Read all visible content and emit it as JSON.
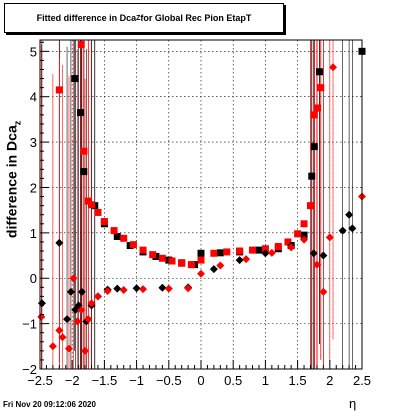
{
  "title": {
    "text": "Fitted difference in Dca",
    "sub": "Z",
    "rest": " for Global Rec Pion EtapT"
  },
  "ylabel": {
    "text": "difference in Dca",
    "sub": "z"
  },
  "xlabel": "η",
  "date": "Fri Nov 20 09:12:06 2020",
  "chart_data": {
    "type": "scatter",
    "xlim": [
      -2.5,
      2.5
    ],
    "ylim": [
      -2,
      5.25
    ],
    "xticks": [
      -2.5,
      -2,
      -1.5,
      -1,
      -0.5,
      0,
      0.5,
      1,
      1.5,
      2,
      2.5
    ],
    "xtick_labels": [
      "−2.5",
      "−2",
      "−1.5",
      "−1",
      "−0.5",
      "0",
      "0.5",
      "1",
      "1.5",
      "2",
      "2.5"
    ],
    "yticks": [
      -2,
      -1,
      0,
      1,
      2,
      3,
      4,
      5
    ],
    "ytick_labels": [
      "−2",
      "−1",
      "0",
      "1",
      "2",
      "3",
      "4",
      "5"
    ],
    "grid": true,
    "series": [
      {
        "marker": "square",
        "color": "#000000",
        "points": [
          [
            -1.96,
            4.4
          ],
          [
            -1.87,
            3.65
          ],
          [
            -1.82,
            2.35
          ],
          [
            -1.65,
            1.6
          ],
          [
            -1.5,
            1.2
          ],
          [
            -1.3,
            0.92
          ],
          [
            -1.1,
            0.72
          ],
          [
            -0.9,
            0.58
          ],
          [
            -0.7,
            0.48
          ],
          [
            -0.5,
            0.4
          ],
          [
            -0.3,
            0.34
          ],
          [
            -0.1,
            0.3
          ],
          [
            0,
            0.55
          ],
          [
            0.3,
            0.56
          ],
          [
            0.6,
            0.58
          ],
          [
            0.9,
            0.62
          ],
          [
            1.2,
            0.65
          ],
          [
            1.4,
            0.72
          ],
          [
            1.6,
            0.95
          ],
          [
            1.72,
            2.25
          ],
          [
            1.76,
            2.9
          ],
          [
            1.8,
            3.75
          ],
          [
            1.84,
            4.55
          ],
          [
            2.5,
            5.0
          ]
        ]
      },
      {
        "marker": "square",
        "color": "#ff0000",
        "points": [
          [
            -2.2,
            4.15
          ],
          [
            -1.86,
            5.15
          ],
          [
            -1.82,
            2.8
          ],
          [
            -1.75,
            1.7
          ],
          [
            -1.7,
            1.62
          ],
          [
            -1.6,
            1.45
          ],
          [
            -1.5,
            1.25
          ],
          [
            -1.35,
            1.05
          ],
          [
            -1.2,
            0.88
          ],
          [
            -1.05,
            0.74
          ],
          [
            -0.9,
            0.62
          ],
          [
            -0.75,
            0.52
          ],
          [
            -0.6,
            0.44
          ],
          [
            -0.45,
            0.38
          ],
          [
            -0.3,
            0.33
          ],
          [
            -0.15,
            0.3
          ],
          [
            0,
            0.4
          ],
          [
            0.2,
            0.55
          ],
          [
            0.4,
            0.58
          ],
          [
            0.6,
            0.6
          ],
          [
            0.8,
            0.62
          ],
          [
            1.0,
            0.65
          ],
          [
            1.2,
            0.7
          ],
          [
            1.35,
            0.8
          ],
          [
            1.5,
            0.98
          ],
          [
            1.6,
            1.2
          ],
          [
            1.7,
            1.6
          ],
          [
            1.76,
            3.6
          ],
          [
            1.8,
            3.75
          ],
          [
            1.86,
            4.2
          ]
        ]
      },
      {
        "marker": "diamond",
        "color": "#000000",
        "points": [
          [
            -2.47,
            -0.55
          ],
          [
            -2.2,
            0.78
          ],
          [
            -2.08,
            -0.9
          ],
          [
            -2.02,
            -0.3
          ],
          [
            -1.95,
            -0.7
          ],
          [
            -1.9,
            -0.6
          ],
          [
            -1.85,
            -0.3
          ],
          [
            -1.78,
            -0.95
          ],
          [
            -1.7,
            -0.6
          ],
          [
            -1.6,
            -0.4
          ],
          [
            -1.45,
            -0.25
          ],
          [
            -1.3,
            -0.23
          ],
          [
            -1.0,
            -0.22
          ],
          [
            -0.6,
            -0.21
          ],
          [
            -0.2,
            -0.2
          ],
          [
            0.2,
            0.2
          ],
          [
            0.6,
            0.4
          ],
          [
            1.0,
            0.55
          ],
          [
            1.4,
            0.72
          ],
          [
            1.75,
            0.55
          ],
          [
            1.9,
            0.5
          ],
          [
            2.2,
            1.05
          ],
          [
            2.3,
            1.4
          ],
          [
            2.35,
            1.1
          ]
        ]
      },
      {
        "marker": "diamond",
        "color": "#ff0000",
        "points": [
          [
            -2.48,
            -0.85
          ],
          [
            -2.3,
            -1.5
          ],
          [
            -2.2,
            -1.15
          ],
          [
            -2.15,
            -1.3
          ],
          [
            -2.05,
            -1.55
          ],
          [
            -1.98,
            0.0
          ],
          [
            -1.92,
            -0.95
          ],
          [
            -1.86,
            -0.7
          ],
          [
            -1.8,
            -1.6
          ],
          [
            -1.75,
            -0.9
          ],
          [
            -1.7,
            -0.55
          ],
          [
            -1.6,
            -0.4
          ],
          [
            -1.45,
            -0.28
          ],
          [
            -1.2,
            -0.26
          ],
          [
            -0.9,
            -0.24
          ],
          [
            -0.5,
            -0.23
          ],
          [
            -0.2,
            -0.22
          ],
          [
            0,
            0.1
          ],
          [
            0.3,
            0.28
          ],
          [
            0.7,
            0.42
          ],
          [
            1.1,
            0.56
          ],
          [
            1.4,
            0.68
          ],
          [
            1.6,
            0.85
          ],
          [
            1.8,
            0.3
          ],
          [
            1.9,
            -0.3
          ],
          [
            2.0,
            0.9
          ],
          [
            2.05,
            4.65
          ],
          [
            2.5,
            1.8
          ]
        ]
      }
    ]
  }
}
